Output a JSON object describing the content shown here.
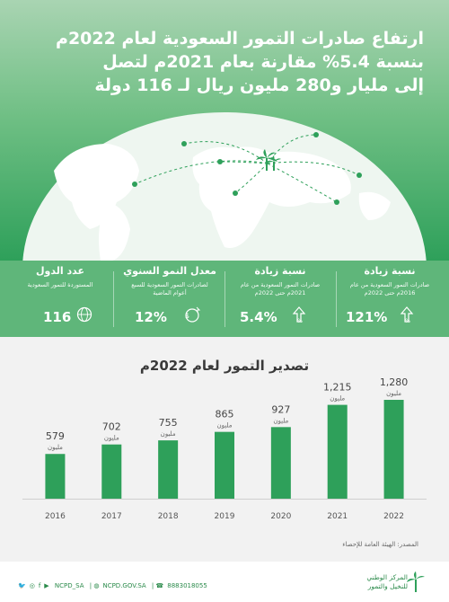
{
  "header": {
    "title_lines": [
      "ارتفاع صادرات التمور السعودية لعام 2022م",
      "بنسبة 5.4% مقارنة بعام 2021م لتصل",
      "إلى مليار و280 مليون ريال لـ 116 دولة"
    ]
  },
  "stats": [
    {
      "heading": "نسبة زيادة",
      "desc": "صادرات التمور السعودية من عام 2016م حتى 2022م",
      "value": "121%",
      "icon": "arrow-up-percent-icon"
    },
    {
      "heading": "نسبة زيادة",
      "desc": "صادرات التمور السعودية من عام 2021م حتى 2022م",
      "value": "5.4%",
      "icon": "arrow-up-percent-icon"
    },
    {
      "heading": "معدل النمو السنوي",
      "desc": "لصادرات التمور السعودية للسبع أعوام الماضية",
      "value": "12%",
      "icon": "coins-growth-icon"
    },
    {
      "heading": "عدد الدول",
      "desc": "المستوردة للتمور السعودية",
      "value": "116",
      "icon": "globe-icon"
    }
  ],
  "chart_data": {
    "type": "bar",
    "title": "تصدير التمور لعام 2022م",
    "categories": [
      "2016",
      "2017",
      "2018",
      "2019",
      "2020",
      "2021",
      "2022"
    ],
    "values": [
      579,
      702,
      755,
      865,
      927,
      1215,
      1280
    ],
    "value_labels": [
      "579",
      "702",
      "755",
      "865",
      "927",
      "1,215",
      "1,280"
    ],
    "unit_label": "مليون",
    "bar_color": "#2ea05a",
    "ylim": [
      0,
      1280
    ]
  },
  "source": "المصدر: الهيئة العامة للإحصاء",
  "footer": {
    "social_handle": "NCPD_SA",
    "website": "NCPD.GOV.SA",
    "phone": "8883018055",
    "logo_text_line1": "المركز الوطني",
    "logo_text_line2": "للنخيل والتمور"
  },
  "colors": {
    "accent": "#2ea05a",
    "band": "#5fb67a"
  }
}
